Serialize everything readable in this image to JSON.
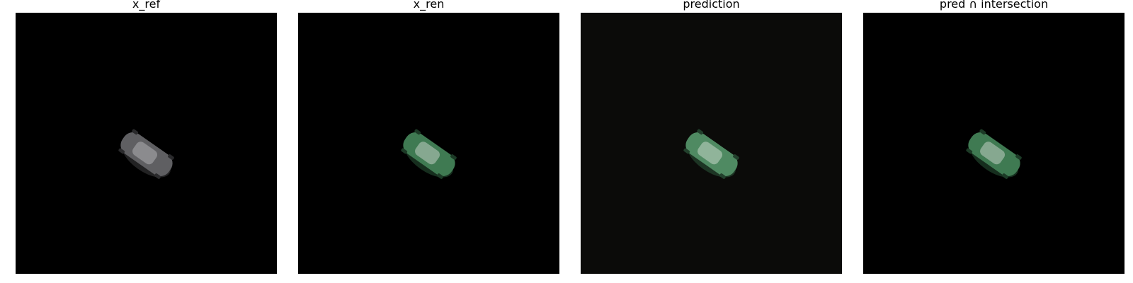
{
  "panels": [
    {
      "title": "x_ref",
      "background": "#000000",
      "car_body": "#5f5f62",
      "car_highlight": "#9a9a9e",
      "car_shadow": "#2a2a2c"
    },
    {
      "title": "x_ren",
      "background": "#000000",
      "car_body": "#3f7a52",
      "car_highlight": "#9fb8a6",
      "car_shadow": "#1c3a26"
    },
    {
      "title": "prediction",
      "background": "#0b0b09",
      "car_body": "#4f8a62",
      "car_highlight": "#a6c2ae",
      "car_shadow": "#22402c"
    },
    {
      "title": "pred ∩ intersection",
      "background": "#000000",
      "car_body": "#3f7a52",
      "car_highlight": "#9fb8a6",
      "car_shadow": "#1c3a26"
    }
  ]
}
